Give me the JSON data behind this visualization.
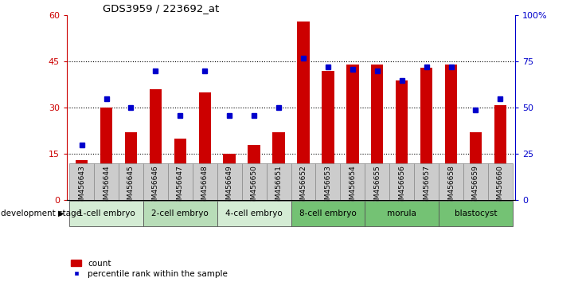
{
  "title": "GDS3959 / 223692_at",
  "samples": [
    "GSM456643",
    "GSM456644",
    "GSM456645",
    "GSM456646",
    "GSM456647",
    "GSM456648",
    "GSM456649",
    "GSM456650",
    "GSM456651",
    "GSM456652",
    "GSM456653",
    "GSM456654",
    "GSM456655",
    "GSM456656",
    "GSM456657",
    "GSM456658",
    "GSM456659",
    "GSM456660"
  ],
  "counts": [
    13,
    30,
    22,
    36,
    20,
    35,
    15,
    18,
    22,
    58,
    42,
    44,
    44,
    39,
    43,
    44,
    22,
    31
  ],
  "percentile_ranks": [
    30,
    55,
    50,
    70,
    46,
    70,
    46,
    46,
    50,
    77,
    72,
    71,
    70,
    65,
    72,
    72,
    49,
    55
  ],
  "stages": [
    {
      "label": "1-cell embryo",
      "start": 0,
      "end": 3
    },
    {
      "label": "2-cell embryo",
      "start": 3,
      "end": 6
    },
    {
      "label": "4-cell embryo",
      "start": 6,
      "end": 9
    },
    {
      "label": "8-cell embryo",
      "start": 9,
      "end": 12
    },
    {
      "label": "morula",
      "start": 12,
      "end": 15
    },
    {
      "label": "blastocyst",
      "start": 15,
      "end": 18
    }
  ],
  "stage_colors": {
    "1-cell embryo": "#d4ecd4",
    "2-cell embryo": "#b8ddb8",
    "4-cell embryo": "#d4ecd4",
    "8-cell embryo": "#74c274",
    "morula": "#74c274",
    "blastocyst": "#74c274"
  },
  "bar_color": "#cc0000",
  "scatter_color": "#0000cc",
  "left_ylim": [
    0,
    60
  ],
  "right_ylim": [
    0,
    100
  ],
  "left_yticks": [
    0,
    15,
    30,
    45,
    60
  ],
  "right_yticks": [
    0,
    25,
    50,
    75,
    100
  ],
  "right_yticklabels": [
    "0",
    "25",
    "50",
    "75",
    "100%"
  ],
  "bg_color": "#ffffff",
  "bar_width": 0.5,
  "dotted_levels": [
    15,
    30,
    45
  ],
  "dev_stage_label": "development stage"
}
